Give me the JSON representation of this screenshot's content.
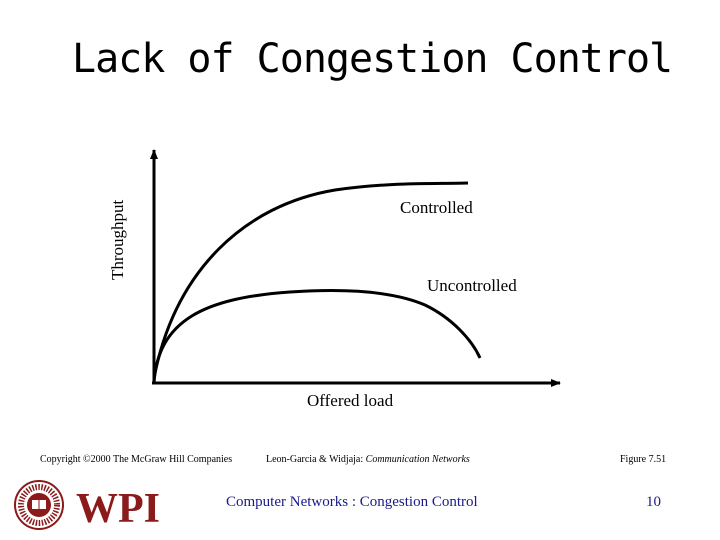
{
  "slide": {
    "title": "Lack of Congestion Control",
    "page_number": "10",
    "footer_topic": "Computer Networks : Congestion Control",
    "copyright": "Copyright ©2000 The McGraw Hill Companies",
    "citation_authors": "Leon-Garcia & Widjaja: ",
    "citation_book": "Communication Networks",
    "figure_ref": "Figure 7.51"
  },
  "diagram": {
    "y_axis_label": "Throughput",
    "x_axis_label": "Offered load",
    "curves": [
      {
        "label": "Controlled",
        "color": "#000000"
      },
      {
        "label": "Uncontrolled",
        "color": "#000000"
      }
    ]
  },
  "logo": {
    "text": "WPI",
    "color": "#8b1a1a",
    "seal_text": "WORCESTER POLYTECHNIC INSTITUTE",
    "seal_year": "1865"
  }
}
